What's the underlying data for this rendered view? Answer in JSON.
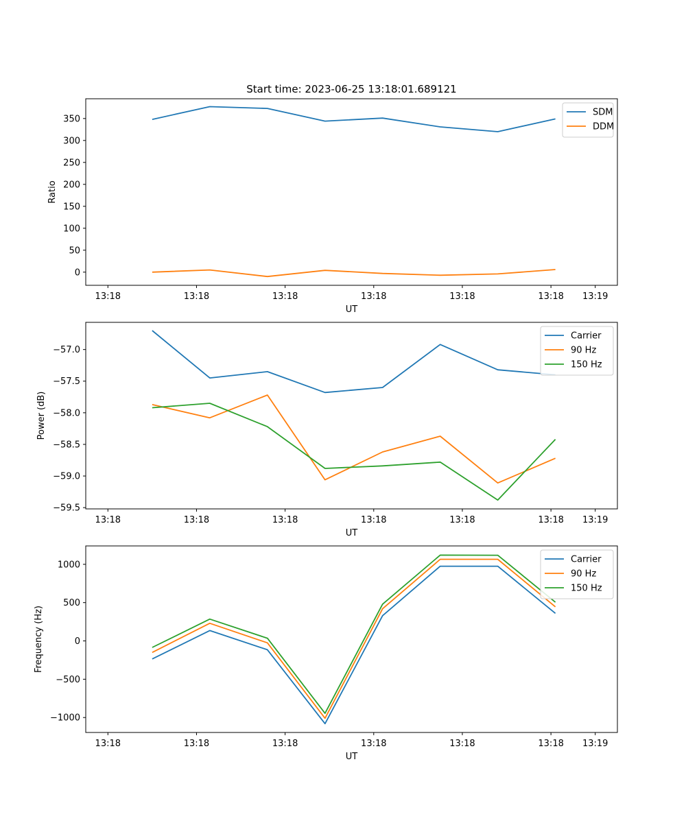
{
  "chart_data": [
    {
      "type": "line",
      "title": "Start time: 2023-06-25 13:18:01.689121",
      "xlabel": "UT",
      "ylabel": "Ratio",
      "xlim": [
        -0.75,
        5.25
      ],
      "ylim": [
        -30,
        395
      ],
      "xticks": [
        -0.5,
        0.5,
        1.5,
        2.5,
        3.5,
        4.5,
        5.0
      ],
      "xtick_labels": [
        "13:18",
        "13:18",
        "13:18",
        "13:18",
        "13:18",
        "13:18",
        "13:19"
      ],
      "yticks": [
        0,
        50,
        100,
        150,
        200,
        250,
        300,
        350
      ],
      "ytick_labels": [
        "0",
        "50",
        "100",
        "150",
        "200",
        "250",
        "300",
        "350"
      ],
      "x": [
        0,
        0.65,
        1.3,
        1.95,
        2.6,
        3.25,
        3.9,
        4.55
      ],
      "legend_position": "top-right",
      "grid": false,
      "series": [
        {
          "name": "SDM",
          "color": "#1f77b4",
          "values": [
            348,
            377,
            373,
            344,
            351,
            331,
            320,
            349
          ]
        },
        {
          "name": "DDM",
          "color": "#ff7f0e",
          "values": [
            0,
            5,
            -10,
            4,
            -3,
            -7,
            -4,
            6
          ]
        }
      ]
    },
    {
      "type": "line",
      "title": "",
      "xlabel": "UT",
      "ylabel": "Power (dB)",
      "xlim": [
        -0.75,
        5.25
      ],
      "ylim": [
        -59.52,
        -56.57
      ],
      "xticks": [
        -0.5,
        0.5,
        1.5,
        2.5,
        3.5,
        4.5,
        5.0
      ],
      "xtick_labels": [
        "13:18",
        "13:18",
        "13:18",
        "13:18",
        "13:18",
        "13:18",
        "13:19"
      ],
      "yticks": [
        -57.0,
        -57.5,
        -58.0,
        -58.5,
        -59.0,
        -59.5
      ],
      "ytick_labels": [
        "−57.0",
        "−57.5",
        "−58.0",
        "−58.5",
        "−59.0",
        "−59.5"
      ],
      "x": [
        0,
        0.65,
        1.3,
        1.95,
        2.6,
        3.25,
        3.9,
        4.55
      ],
      "legend_position": "top-right",
      "grid": false,
      "series": [
        {
          "name": "Carrier",
          "color": "#1f77b4",
          "values": [
            -56.7,
            -57.45,
            -57.35,
            -57.68,
            -57.6,
            -56.92,
            -57.32,
            -57.4
          ]
        },
        {
          "name": "90 Hz",
          "color": "#ff7f0e",
          "values": [
            -57.87,
            -58.08,
            -57.72,
            -59.06,
            -58.62,
            -58.37,
            -59.11,
            -58.72
          ]
        },
        {
          "name": "150 Hz",
          "color": "#2ca02c",
          "values": [
            -57.92,
            -57.85,
            -58.22,
            -58.88,
            -58.84,
            -58.78,
            -59.38,
            -58.42
          ]
        }
      ]
    },
    {
      "type": "line",
      "title": "",
      "xlabel": "UT",
      "ylabel": "Frequency (Hz)",
      "xlim": [
        -0.75,
        5.25
      ],
      "ylim": [
        -1195,
        1240
      ],
      "xticks": [
        -0.5,
        0.5,
        1.5,
        2.5,
        3.5,
        4.5,
        5.0
      ],
      "xtick_labels": [
        "13:18",
        "13:18",
        "13:18",
        "13:18",
        "13:18",
        "13:18",
        "13:19"
      ],
      "yticks": [
        1000,
        500,
        0,
        -500,
        -1000
      ],
      "ytick_labels": [
        "1000",
        "500",
        "0",
        "−500",
        "−1000"
      ],
      "x": [
        0,
        0.65,
        1.3,
        1.95,
        2.6,
        3.25,
        3.9,
        4.55
      ],
      "legend_position": "top-right",
      "grid": false,
      "series": [
        {
          "name": "Carrier",
          "color": "#1f77b4",
          "values": [
            -235,
            135,
            -115,
            -1080,
            330,
            975,
            975,
            360
          ]
        },
        {
          "name": "90 Hz",
          "color": "#ff7f0e",
          "values": [
            -150,
            230,
            -25,
            -1010,
            420,
            1065,
            1065,
            445
          ]
        },
        {
          "name": "150 Hz",
          "color": "#2ca02c",
          "values": [
            -85,
            285,
            35,
            -945,
            480,
            1120,
            1118,
            505
          ]
        }
      ]
    }
  ]
}
